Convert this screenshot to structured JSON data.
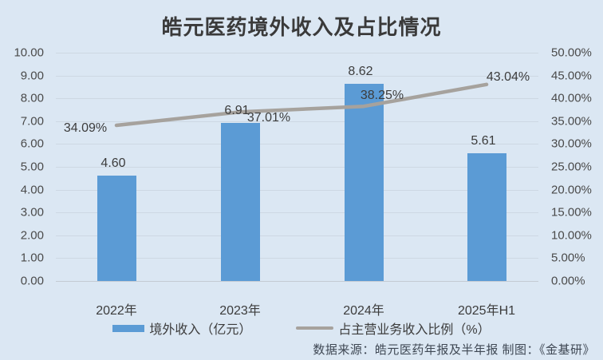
{
  "title": "皓元医药境外收入及占比情况",
  "footer": "数据来源：皓元医药年报及半年报  制图：《金基研》",
  "colors": {
    "background": "#dbe7f3",
    "bar": "#5b9bd5",
    "line": "#a6a29d",
    "grid": "#cdd8e3",
    "text": "#3c3c3c"
  },
  "legend": [
    {
      "type": "bar",
      "label": "境外收入（亿元）"
    },
    {
      "type": "line",
      "label": "占主营业务收入比例（%）"
    }
  ],
  "chart_data": {
    "type": "bar",
    "subtype": "bar-line-combo",
    "title": "皓元医药境外收入及占比情况",
    "categories": [
      "2022年",
      "2023年",
      "2024年",
      "2025年H1"
    ],
    "series": [
      {
        "name": "境外收入（亿元）",
        "type": "bar",
        "axis": "left",
        "values": [
          4.6,
          6.91,
          8.62,
          5.61
        ],
        "labels": [
          "4.60",
          "6.91",
          "8.62",
          "5.61"
        ]
      },
      {
        "name": "占主营业务收入比例（%）",
        "type": "line",
        "axis": "right",
        "values": [
          34.09,
          37.01,
          38.25,
          43.04
        ],
        "labels": [
          "34.09%",
          "37.01%",
          "38.25%",
          "43.04%"
        ]
      }
    ],
    "left_axis": {
      "min": 0,
      "max": 10,
      "ticks": [
        "10.00",
        "9.00",
        "8.00",
        "7.00",
        "6.00",
        "5.00",
        "4.00",
        "3.00",
        "2.00",
        "1.00",
        "0.00"
      ]
    },
    "right_axis": {
      "min": 0,
      "max": 50,
      "ticks": [
        "50.00%",
        "45.00%",
        "40.00%",
        "35.00%",
        "30.00%",
        "25.00%",
        "20.00%",
        "15.00%",
        "10.00%",
        "5.00%",
        "0.00%"
      ]
    },
    "grid": true,
    "legend_position": "bottom"
  }
}
